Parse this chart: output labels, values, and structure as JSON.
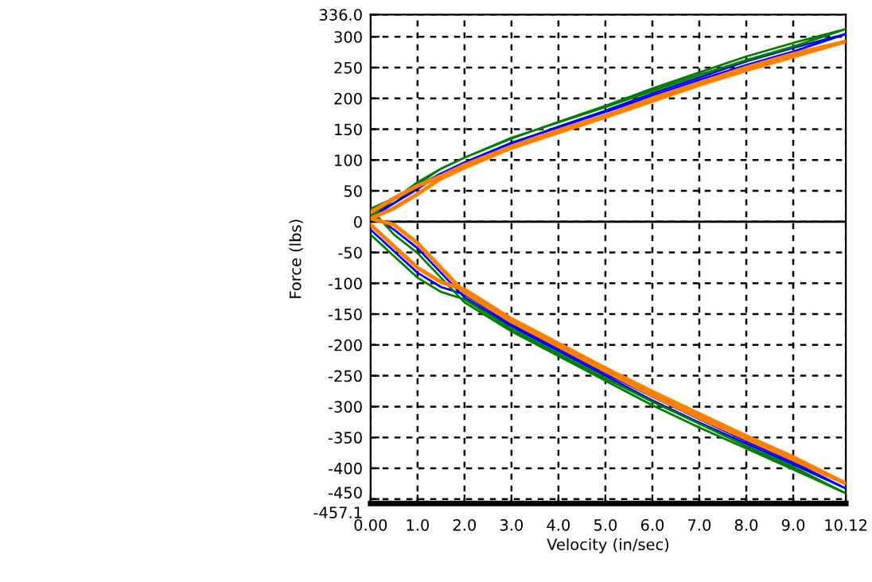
{
  "chart_data": {
    "type": "line",
    "xlabel": "Velocity (in/sec)",
    "ylabel": "Force (lbs)",
    "xlim": [
      0,
      10.12
    ],
    "ylim": [
      -457.1,
      336.0
    ],
    "xticks": [
      {
        "value": 0,
        "label": "0.00"
      },
      {
        "value": 1,
        "label": "1.0"
      },
      {
        "value": 2,
        "label": "2.0"
      },
      {
        "value": 3,
        "label": "3.0"
      },
      {
        "value": 4,
        "label": "4.0"
      },
      {
        "value": 5,
        "label": "5.0"
      },
      {
        "value": 6,
        "label": "6.0"
      },
      {
        "value": 7,
        "label": "7.0"
      },
      {
        "value": 8,
        "label": "8.0"
      },
      {
        "value": 9,
        "label": "9.0"
      },
      {
        "value": 10.12,
        "label": "10.12"
      }
    ],
    "yticks": [
      {
        "value": -457.1,
        "label": "-457.1"
      },
      -450,
      -400,
      -350,
      -300,
      -250,
      -200,
      -150,
      -100,
      -50,
      0,
      50,
      100,
      150,
      200,
      250,
      300,
      {
        "value": 336.0,
        "label": "336.0"
      }
    ],
    "grid": true,
    "line_style": "solid",
    "marker": "none",
    "ref_lines": [
      {
        "axis": "y",
        "value": 0,
        "color": "#000000",
        "line_style": "solid"
      }
    ],
    "series": [
      {
        "color": "#0000ff",
        "x": [
          0,
          0.5,
          1,
          1.5,
          2,
          3,
          4,
          5,
          6,
          7,
          8,
          9,
          10.1,
          9,
          8,
          7,
          6,
          5,
          4,
          3,
          2,
          1.5,
          1,
          0.5,
          0,
          0.5,
          1,
          1.5,
          2,
          3,
          4,
          5,
          6,
          7,
          8,
          9,
          10.1,
          9,
          8,
          7,
          6,
          5,
          4,
          3,
          2,
          1.5,
          1,
          0.5,
          0
        ],
        "values": [
          6,
          30,
          58,
          78,
          96,
          127,
          154,
          180,
          208,
          234,
          260,
          282,
          304,
          276,
          254,
          230,
          204,
          178,
          153,
          128,
          96,
          78,
          53,
          30,
          13,
          -13,
          -43,
          -83,
          -123,
          -170,
          -210,
          -250,
          -290,
          -326,
          -360,
          -394,
          -432,
          -390,
          -356,
          -320,
          -284,
          -246,
          -206,
          -166,
          -118,
          -106,
          -83,
          -48,
          -13
        ]
      },
      {
        "color": "#008000",
        "x": [
          0,
          0.5,
          1,
          1.5,
          2,
          3,
          4,
          5,
          6,
          7,
          8,
          9,
          10.1,
          9,
          8,
          7,
          6,
          5,
          4,
          3,
          2,
          1.5,
          1,
          0.5,
          0,
          0.5,
          1,
          1.5,
          2,
          3,
          4,
          5,
          6,
          7,
          8,
          9,
          10.1,
          9,
          8,
          7,
          6,
          5,
          4,
          3,
          2,
          1.5,
          1,
          0.5,
          0
        ],
        "values": [
          10,
          36,
          64,
          86,
          104,
          135,
          162,
          188,
          216,
          242,
          268,
          290,
          312,
          284,
          262,
          238,
          212,
          186,
          161,
          136,
          104,
          86,
          61,
          38,
          21,
          -21,
          -51,
          -91,
          -131,
          -178,
          -218,
          -258,
          -298,
          -334,
          -368,
          -402,
          -440,
          -398,
          -364,
          -328,
          -292,
          -254,
          -214,
          -174,
          -126,
          -114,
          -91,
          -56,
          -21
        ]
      },
      {
        "color": "#ff8000",
        "x": [
          0,
          0.5,
          1,
          1.5,
          2,
          3,
          4,
          5,
          6,
          7,
          8,
          9,
          10.1,
          9,
          8,
          7,
          6,
          5,
          4,
          3,
          2,
          1.5,
          1,
          0.5,
          0,
          0.5,
          1,
          1.5,
          2,
          3,
          4,
          5,
          6,
          7,
          8,
          9,
          10.1,
          9,
          8,
          7,
          6,
          5,
          4,
          3,
          2,
          1.5,
          1,
          0.5,
          0
        ],
        "values": [
          15,
          38,
          58,
          74,
          92,
          122,
          148,
          172,
          200,
          225,
          250,
          272,
          292,
          268,
          246,
          222,
          196,
          170,
          145,
          120,
          88,
          70,
          45,
          22,
          5,
          -5,
          -35,
          -75,
          -115,
          -162,
          -202,
          -242,
          -282,
          -318,
          -352,
          -386,
          -424,
          -382,
          -348,
          -312,
          -276,
          -238,
          -198,
          -158,
          -110,
          -98,
          -75,
          -40,
          -5
        ]
      }
    ]
  }
}
